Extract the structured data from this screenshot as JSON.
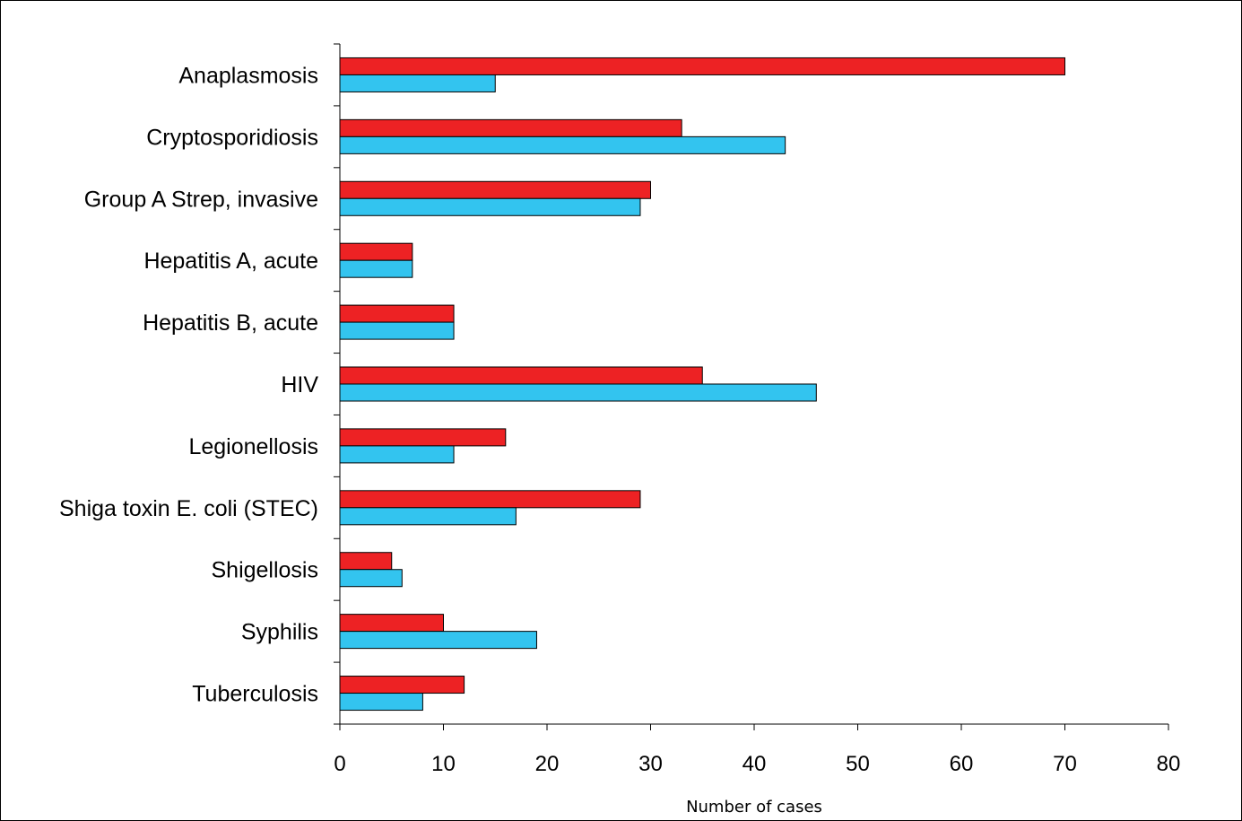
{
  "chart_data": {
    "type": "bar",
    "orientation": "horizontal",
    "categories": [
      "Anaplasmosis",
      "Cryptosporidiosis",
      "Group A Strep, invasive",
      "Hepatitis A, acute",
      "Hepatitis B, acute",
      "HIV",
      "Legionellosis",
      "Shiga toxin E. coli (STEC)",
      "Shigellosis",
      "Syphilis",
      "Tuberculosis"
    ],
    "series": [
      {
        "color": "#ed2224",
        "values": [
          70,
          33,
          30,
          7,
          11,
          35,
          16,
          29,
          5,
          10,
          12
        ]
      },
      {
        "color": "#33c4ef",
        "values": [
          15,
          43,
          29,
          7,
          11,
          46,
          11,
          17,
          6,
          19,
          8
        ]
      }
    ],
    "xlabel": "Number of cases",
    "ylabel": "",
    "title": "",
    "xlim": [
      0,
      80
    ],
    "xticks": [
      "0",
      "10",
      "20",
      "30",
      "40",
      "50",
      "60",
      "70",
      "80"
    ],
    "grid": false,
    "legend": "none"
  }
}
